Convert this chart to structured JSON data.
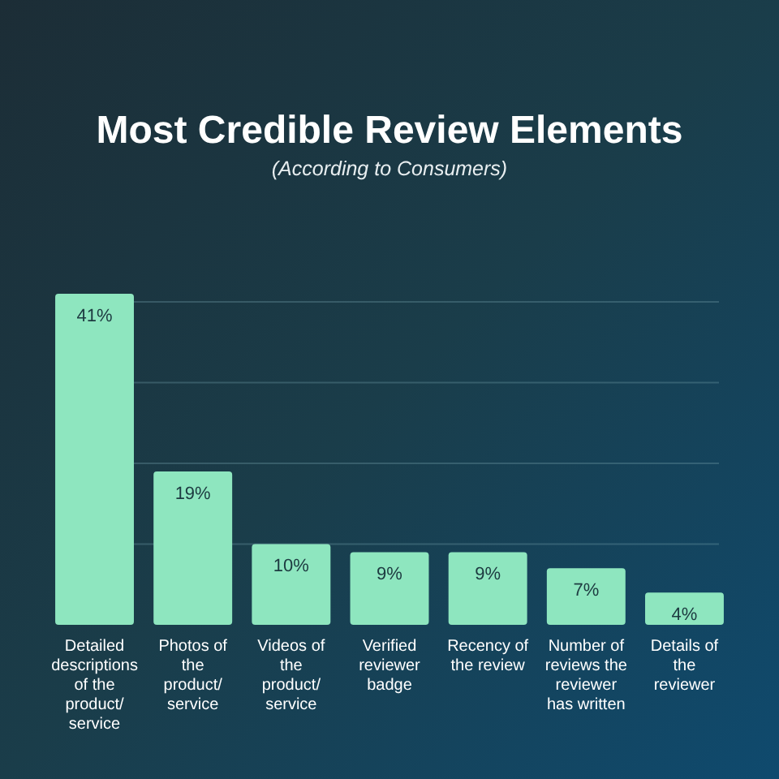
{
  "chart_data": {
    "type": "bar",
    "title": "Most Credible Review Elements",
    "subtitle": "(According to Consumers)",
    "categories": [
      "Detailed descriptions of the product/ service",
      "Photos of the product/ service",
      "Videos of the product/ service",
      "Verified reviewer badge",
      "Recency of the review",
      "Number of reviews the reviewer has written",
      "Details of the reviewer"
    ],
    "values": [
      41,
      19,
      10,
      9,
      9,
      7,
      4
    ],
    "value_labels": [
      "41%",
      "19%",
      "10%",
      "9%",
      "9%",
      "7%",
      "4%"
    ],
    "color": "#8ee6bf",
    "ylim": [
      0,
      41
    ],
    "yticks": [
      {
        "value": 10,
        "label": null
      },
      {
        "value": 20,
        "label": null
      },
      {
        "value": 30,
        "label": null
      },
      {
        "value": 40,
        "label": null
      }
    ],
    "grid": "y",
    "tick_labels": "x"
  }
}
